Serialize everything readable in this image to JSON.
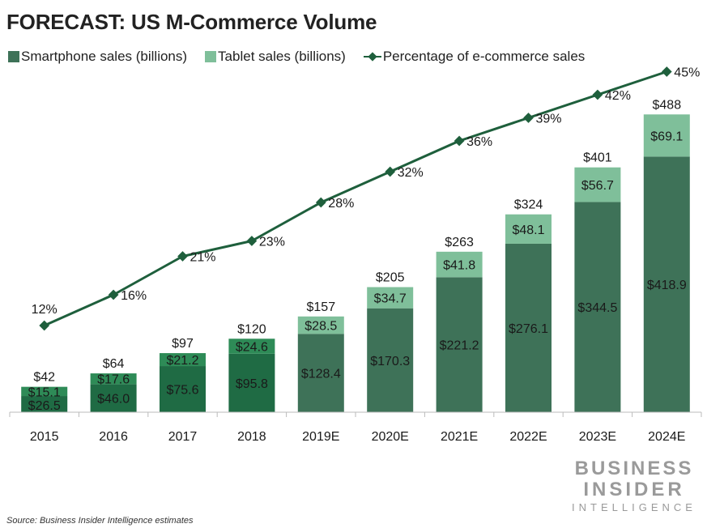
{
  "colors": {
    "smartphone_dark": "#1f6b44",
    "smartphone_forecast": "#3e7258",
    "tablet_dark": "#2e8b57",
    "tablet_light": "#7fbf9a",
    "line": "#1e5f3c",
    "text": "#222222"
  },
  "legend": {
    "smartphone": "Smartphone sales (billions)",
    "tablet": "Tablet sales (billions)",
    "percentage": "Percentage of e-commerce sales"
  },
  "brand": {
    "line1": "BUSINESS",
    "line2": "INSIDER",
    "line3": "INTELLIGENCE"
  },
  "source": "Source: Business Insider Intelligence estimates",
  "chart_data": {
    "type": "bar",
    "title": "FORECAST: US M-Commerce Volume",
    "categories": [
      "2015",
      "2016",
      "2017",
      "2018",
      "2019E",
      "2020E",
      "2021E",
      "2022E",
      "2023E",
      "2024E"
    ],
    "series": [
      {
        "name": "Smartphone sales (billions)",
        "values": [
          26.5,
          46.0,
          75.6,
          95.8,
          128.4,
          170.3,
          221.2,
          276.1,
          344.5,
          418.9
        ],
        "labels": [
          "$26.5",
          "$46.0",
          "$75.6",
          "$95.8",
          "$128.4",
          "$170.3",
          "$221.2",
          "$276.1",
          "$344.5",
          "$418.9"
        ]
      },
      {
        "name": "Tablet sales (billions)",
        "values": [
          15.1,
          17.6,
          21.2,
          24.6,
          28.5,
          34.7,
          41.8,
          48.1,
          56.7,
          69.1
        ],
        "labels": [
          "$15.1",
          "$17.6",
          "$21.2",
          "$24.6",
          "$28.5",
          "$34.7",
          "$41.8",
          "$48.1",
          "$56.7",
          "$69.1"
        ]
      }
    ],
    "totals": [
      42,
      64,
      97,
      120,
      157,
      205,
      263,
      324,
      401,
      488
    ],
    "total_labels": [
      "$42",
      "$64",
      "$97",
      "$120",
      "$157",
      "$205",
      "$263",
      "$324",
      "$401",
      "$488"
    ],
    "line_series": {
      "name": "Percentage of e-commerce sales",
      "values": [
        12,
        16,
        21,
        23,
        28,
        32,
        36,
        39,
        42,
        45
      ],
      "labels": [
        "12%",
        "16%",
        "21%",
        "23%",
        "28%",
        "32%",
        "36%",
        "39%",
        "42%",
        "45%"
      ]
    },
    "stacked": true,
    "ylim": [
      0,
      500
    ],
    "line_ylim": [
      0,
      50
    ],
    "forecast_from_index": 4,
    "grid": false,
    "legend_position": "top-left"
  }
}
